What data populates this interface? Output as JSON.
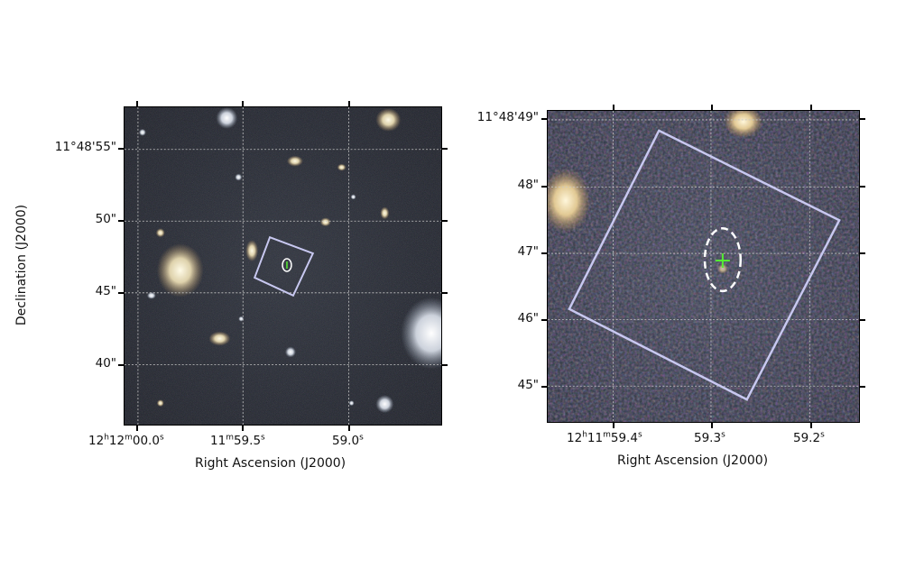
{
  "left_panel": {
    "ylabel": "Declination (J2000)",
    "xlabel": "Right Ascension (J2000)",
    "y_ticks": [
      "11°48'55\"",
      "50\"",
      "45\"",
      "40\""
    ],
    "x_ticks": [
      {
        "h": "12",
        "hu": "h",
        "m": "12",
        "mu": "m",
        "s": "00.0",
        "su": "s"
      },
      {
        "h": "",
        "hu": "",
        "m": "11",
        "mu": "m",
        "s": "59.5",
        "su": "s"
      },
      {
        "h": "",
        "hu": "",
        "m": "",
        "mu": "",
        "s": "59.0",
        "su": "s"
      }
    ]
  },
  "right_panel": {
    "xlabel": "Right Ascension (J2000)",
    "y_ticks": [
      "11°48'49\"",
      "48\"",
      "47\"",
      "46\"",
      "45\""
    ],
    "x_ticks": [
      {
        "h": "12",
        "hu": "h",
        "m": "11",
        "mu": "m",
        "s": "59.4",
        "su": "s"
      },
      {
        "h": "",
        "hu": "",
        "m": "",
        "mu": "",
        "s": "59.3",
        "su": "s"
      },
      {
        "h": "",
        "hu": "",
        "m": "",
        "mu": "",
        "s": "59.2",
        "su": "s"
      }
    ]
  },
  "colors": {
    "box": "#c8c8f0",
    "marker": "#55ee33",
    "ellipse": "#ffffff",
    "grid": "#c8c8c8"
  }
}
